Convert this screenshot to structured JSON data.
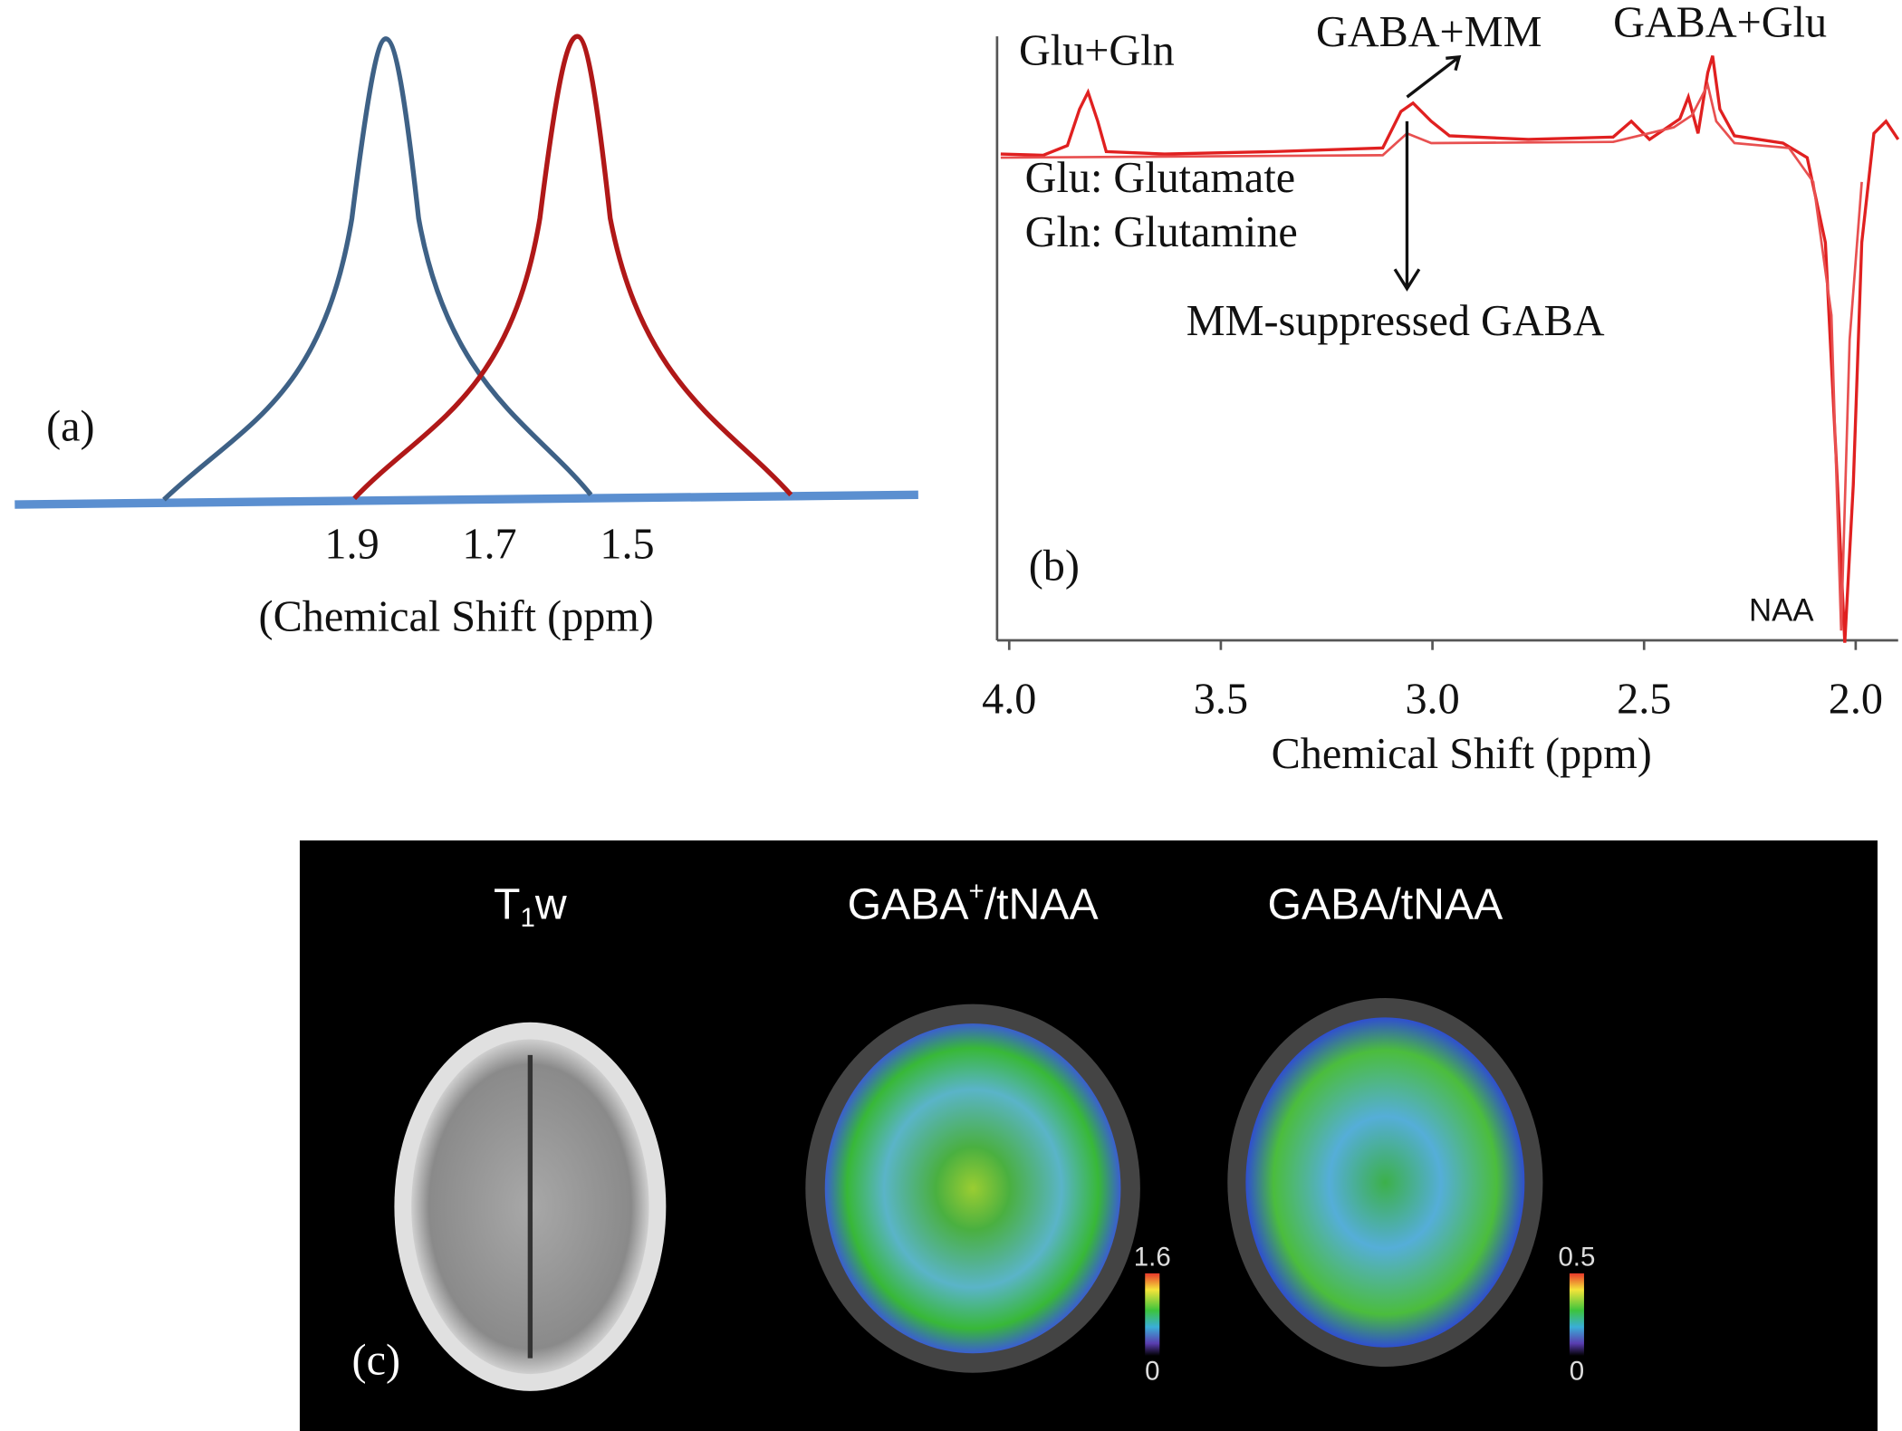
{
  "panel_a": {
    "label": "(a)",
    "xticks": [
      1.9,
      1.7,
      1.5
    ],
    "xlabel": "(Chemical Shift (ppm)"
  },
  "panel_b": {
    "label": "(b)",
    "xticks": [
      {
        "value": 4,
        "label": "4.0"
      },
      3.5,
      {
        "value": 3,
        "label": "3.0"
      },
      2.5,
      {
        "value": 2,
        "label": "2.0"
      }
    ],
    "xlabel": "Chemical Shift (ppm)",
    "annotations": [
      "Glu+Gln",
      "GABA+MM",
      "GABA+Glu",
      "Glu: Glutamate",
      "Gln: Glutamine",
      "MM-suppressed GABA",
      "NAA"
    ]
  },
  "panel_c": {
    "label": "(c)",
    "images": [
      {
        "title_parts": [
          {
            "text": "T"
          },
          {
            "text": "1",
            "style": "sub"
          },
          {
            "text": "w"
          }
        ]
      },
      {
        "title_parts": [
          {
            "text": "GABA"
          },
          {
            "text": "+",
            "style": "sup"
          },
          {
            "text": "/tNAA"
          }
        ],
        "colorbar_ticks": [
          1.6,
          0
        ]
      },
      {
        "title_parts": [
          {
            "text": "GABA/tNAA"
          }
        ],
        "colorbar_ticks": [
          0.5,
          0
        ]
      }
    ]
  }
}
